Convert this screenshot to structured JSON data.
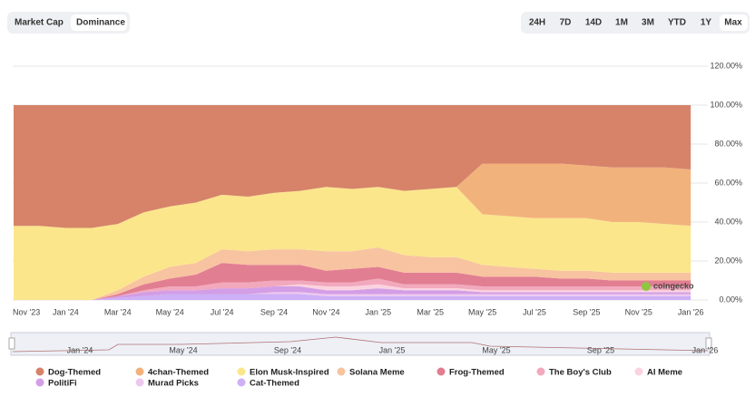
{
  "controls": {
    "tabs": [
      "Market Cap",
      "Dominance"
    ],
    "active_tab": 1,
    "ranges": [
      "24H",
      "7D",
      "14D",
      "1M",
      "3M",
      "YTD",
      "1Y",
      "Max"
    ],
    "active_range": 7
  },
  "watermark": "coingecko",
  "navigator": {
    "labels": [
      "Jan '24",
      "May '24",
      "Sep '24",
      "Jan '25",
      "May '25",
      "Sep '25",
      "Jan '26"
    ]
  },
  "chart_data": {
    "type": "stacked-area",
    "categories": [
      "Nov '23",
      null,
      "Jan '24",
      null,
      "Mar '24",
      null,
      "May '24",
      null,
      "Jul '24",
      null,
      "Sep '24",
      null,
      "Nov '24",
      null,
      "Jan '25",
      null,
      "Mar '25",
      null,
      "May '25",
      null,
      "Jul '25",
      null,
      "Sep '25",
      null,
      "Nov '25",
      null,
      "Jan '26"
    ],
    "ylim": [
      0,
      120
    ],
    "yticks": [
      {
        "value": 0,
        "label": "0.00%"
      },
      {
        "value": 20,
        "label": "20.00%"
      },
      {
        "value": 40,
        "label": "40.00%"
      },
      {
        "value": 60,
        "label": "60.00%"
      },
      {
        "value": 80,
        "label": "80.00%"
      },
      {
        "value": 100,
        "label": "100.00%"
      },
      {
        "value": 120,
        "label": "120.00%"
      }
    ],
    "grid": true,
    "series": [
      {
        "name": "Dog-Themed",
        "color": "#d6836a",
        "values": [
          62,
          62,
          63,
          63,
          61,
          55,
          52,
          50,
          46,
          47,
          45,
          44,
          42,
          43,
          42,
          44,
          43,
          42,
          30,
          30,
          30,
          30,
          31,
          32,
          32,
          32,
          33
        ]
      },
      {
        "name": "4chan-Themed",
        "color": "#f2b27c",
        "values": [
          0,
          0,
          0,
          0,
          0,
          0,
          0,
          0,
          0,
          0,
          0,
          0,
          0,
          0,
          0,
          0,
          0,
          0,
          26,
          27,
          28,
          28,
          27,
          28,
          28,
          29,
          29
        ]
      },
      {
        "name": "Elon Musk-Inspired",
        "color": "#fbe68c",
        "values": [
          38,
          38,
          37,
          37,
          34,
          33,
          31,
          31,
          28,
          28,
          29,
          30,
          33,
          32,
          31,
          33,
          35,
          36,
          26,
          26,
          26,
          27,
          27,
          26,
          26,
          25,
          24
        ]
      },
      {
        "name": "Solana Meme",
        "color": "#f8c3a0",
        "values": [
          0,
          0,
          0,
          0,
          2,
          4,
          6,
          6,
          7,
          7,
          8,
          8,
          10,
          9,
          10,
          9,
          8,
          8,
          6,
          5,
          4,
          4,
          4,
          4,
          4,
          4,
          4
        ]
      },
      {
        "name": "Frog-Themed",
        "color": "#e27e92",
        "values": [
          0,
          0,
          0,
          0,
          1,
          3,
          4,
          6,
          10,
          9,
          8,
          8,
          6,
          7,
          6,
          6,
          6,
          6,
          5,
          5,
          5,
          4,
          4,
          3,
          3,
          3,
          3
        ]
      },
      {
        "name": "The Boy's Club",
        "color": "#f2a9bd",
        "values": [
          0,
          0,
          0,
          0,
          0,
          1,
          2,
          2,
          3,
          3,
          3,
          2,
          2,
          2,
          3,
          2,
          2,
          2,
          2,
          2,
          2,
          2,
          2,
          2,
          2,
          2,
          2
        ]
      },
      {
        "name": "AI Meme",
        "color": "#fbd3df",
        "values": [
          0,
          0,
          0,
          0,
          0,
          0,
          0,
          0,
          0,
          0,
          0,
          1,
          2,
          2,
          2,
          1,
          1,
          1,
          1,
          1,
          1,
          1,
          1,
          1,
          1,
          1,
          1
        ]
      },
      {
        "name": "PolitiFi",
        "color": "#d39ee6",
        "values": [
          0,
          0,
          0,
          0,
          1,
          2,
          2,
          2,
          3,
          3,
          3,
          3,
          2,
          2,
          3,
          2,
          2,
          2,
          1,
          1,
          1,
          1,
          1,
          1,
          1,
          1,
          1
        ]
      },
      {
        "name": "Murad Picks",
        "color": "#ecc8ef",
        "values": [
          0,
          0,
          0,
          0,
          0,
          0,
          0,
          0,
          0,
          0,
          1,
          1,
          1,
          1,
          1,
          1,
          1,
          1,
          1,
          1,
          1,
          1,
          1,
          1,
          1,
          1,
          1
        ]
      },
      {
        "name": "Cat-Themed",
        "color": "#cdb0f6",
        "values": [
          0,
          0,
          0,
          0,
          1,
          2,
          3,
          3,
          3,
          3,
          3,
          3,
          2,
          2,
          2,
          2,
          2,
          2,
          2,
          2,
          2,
          2,
          2,
          2,
          2,
          2,
          2
        ]
      }
    ]
  }
}
